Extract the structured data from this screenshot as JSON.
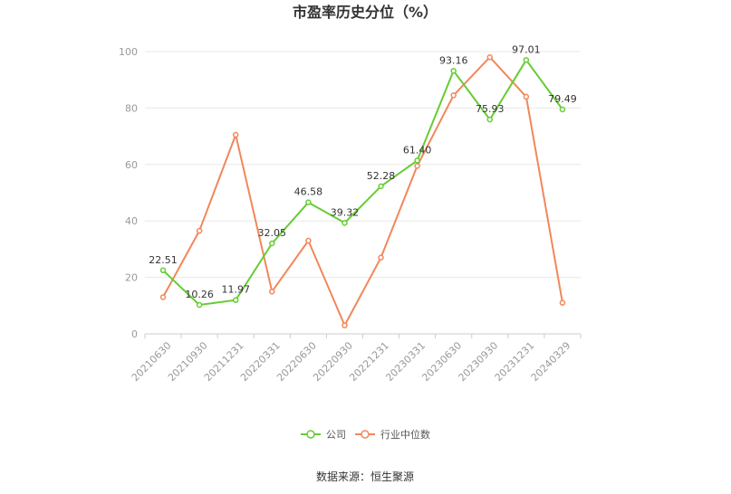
{
  "title": "市盈率历史分位（%）",
  "source": "数据来源：恒生聚源",
  "colors": {
    "company": "#66cc33",
    "industry": "#f2875a"
  },
  "chart_data": {
    "type": "line",
    "title": "市盈率历史分位（%）",
    "categories": [
      "20210630",
      "20210930",
      "20211231",
      "20220331",
      "20220630",
      "20220930",
      "20221231",
      "20230331",
      "20230630",
      "20230930",
      "20231231",
      "20240329"
    ],
    "ylim": [
      0,
      100
    ],
    "yticks": [
      0,
      20,
      40,
      60,
      80,
      100
    ],
    "grid": true,
    "legend": "bottom",
    "series": [
      {
        "name": "公司",
        "color": "#66cc33",
        "values": [
          22.51,
          10.26,
          11.97,
          32.05,
          46.58,
          39.32,
          52.28,
          61.4,
          93.16,
          75.93,
          97.01,
          79.49
        ],
        "labels": [
          "22.51",
          "10.26",
          "11.97",
          "32.05",
          "46.58",
          "39.32",
          "52.28",
          "61.40",
          "93.16",
          "75.93",
          "97.01",
          "79.49"
        ]
      },
      {
        "name": "行业中位数",
        "color": "#f2875a",
        "values": [
          13.0,
          36.5,
          70.5,
          15.0,
          33.0,
          3.0,
          27.0,
          59.5,
          84.5,
          98.0,
          84.0,
          11.0
        ]
      }
    ]
  }
}
